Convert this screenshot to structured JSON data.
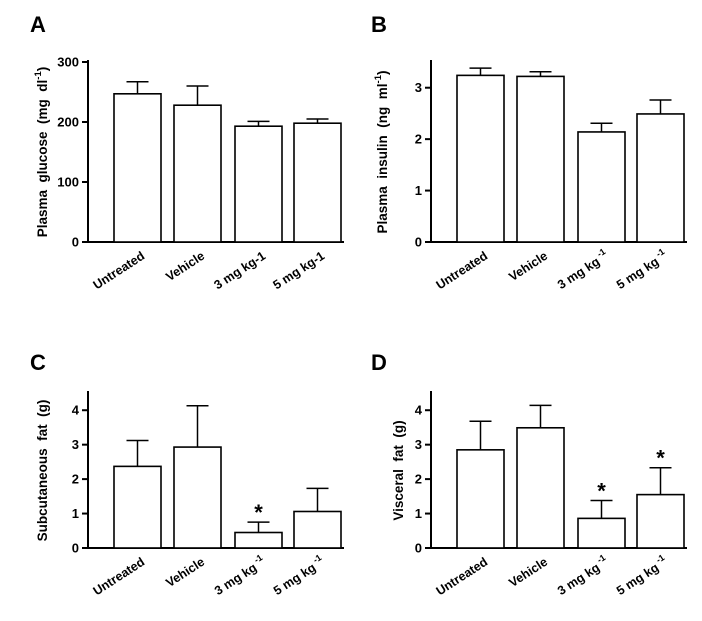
{
  "chart_data": [
    {
      "type": "bar",
      "panel": "A",
      "ylabel": "Plasma glucose (mg dl",
      "ylabel_sup": "-1",
      "ylabel_end": ")",
      "categories": [
        "Untreated",
        "Vehicle",
        "3 mg kg-1",
        "5 mg kg-1"
      ],
      "category_sup": [
        "",
        "",
        "",
        ""
      ],
      "values": [
        247,
        228,
        193,
        198
      ],
      "errors": [
        20,
        32,
        8,
        7
      ],
      "yticks": [
        0,
        100,
        200,
        300
      ],
      "ylim": [
        0,
        300
      ],
      "significant": [
        false,
        false,
        false,
        false
      ],
      "star": "*"
    },
    {
      "type": "bar",
      "panel": "B",
      "ylabel": "Plasma insulin (ng ml",
      "ylabel_sup": "-1",
      "ylabel_end": ")",
      "categories": [
        "Untreated",
        "Vehicle",
        "3 mg kg",
        "5 mg kg"
      ],
      "category_sup": [
        "",
        "",
        "-1",
        "-1"
      ],
      "values": [
        3.24,
        3.22,
        2.14,
        2.49
      ],
      "errors": [
        0.14,
        0.09,
        0.17,
        0.27
      ],
      "yticks": [
        0,
        1,
        2,
        3
      ],
      "ylim": [
        0,
        3.5
      ],
      "significant": [
        false,
        false,
        false,
        false
      ],
      "star": "*"
    },
    {
      "type": "bar",
      "panel": "C",
      "ylabel": "Subcutaneous fat (g)",
      "ylabel_sup": "",
      "ylabel_end": "",
      "categories": [
        "Untreated",
        "Vehicle",
        "3 mg kg",
        "5 mg kg"
      ],
      "category_sup": [
        "",
        "",
        "-1",
        "-1"
      ],
      "values": [
        2.37,
        2.93,
        0.45,
        1.06
      ],
      "errors": [
        0.75,
        1.2,
        0.3,
        0.67
      ],
      "yticks": [
        0,
        1,
        2,
        3,
        4
      ],
      "ylim": [
        0,
        4.5
      ],
      "significant": [
        false,
        false,
        true,
        false
      ],
      "star": "*"
    },
    {
      "type": "bar",
      "panel": "D",
      "ylabel": "Visceral fat (g)",
      "ylabel_sup": "",
      "ylabel_end": "",
      "categories": [
        "Untreated",
        "Vehicle",
        "3 mg kg",
        "5 mg kg"
      ],
      "category_sup": [
        "",
        "",
        "-1",
        "-1"
      ],
      "values": [
        2.85,
        3.49,
        0.86,
        1.55
      ],
      "errors": [
        0.83,
        0.65,
        0.52,
        0.78
      ],
      "yticks": [
        0,
        1,
        2,
        3,
        4
      ],
      "ylim": [
        0,
        4.5
      ],
      "significant": [
        false,
        false,
        true,
        true
      ],
      "star": "*"
    }
  ]
}
